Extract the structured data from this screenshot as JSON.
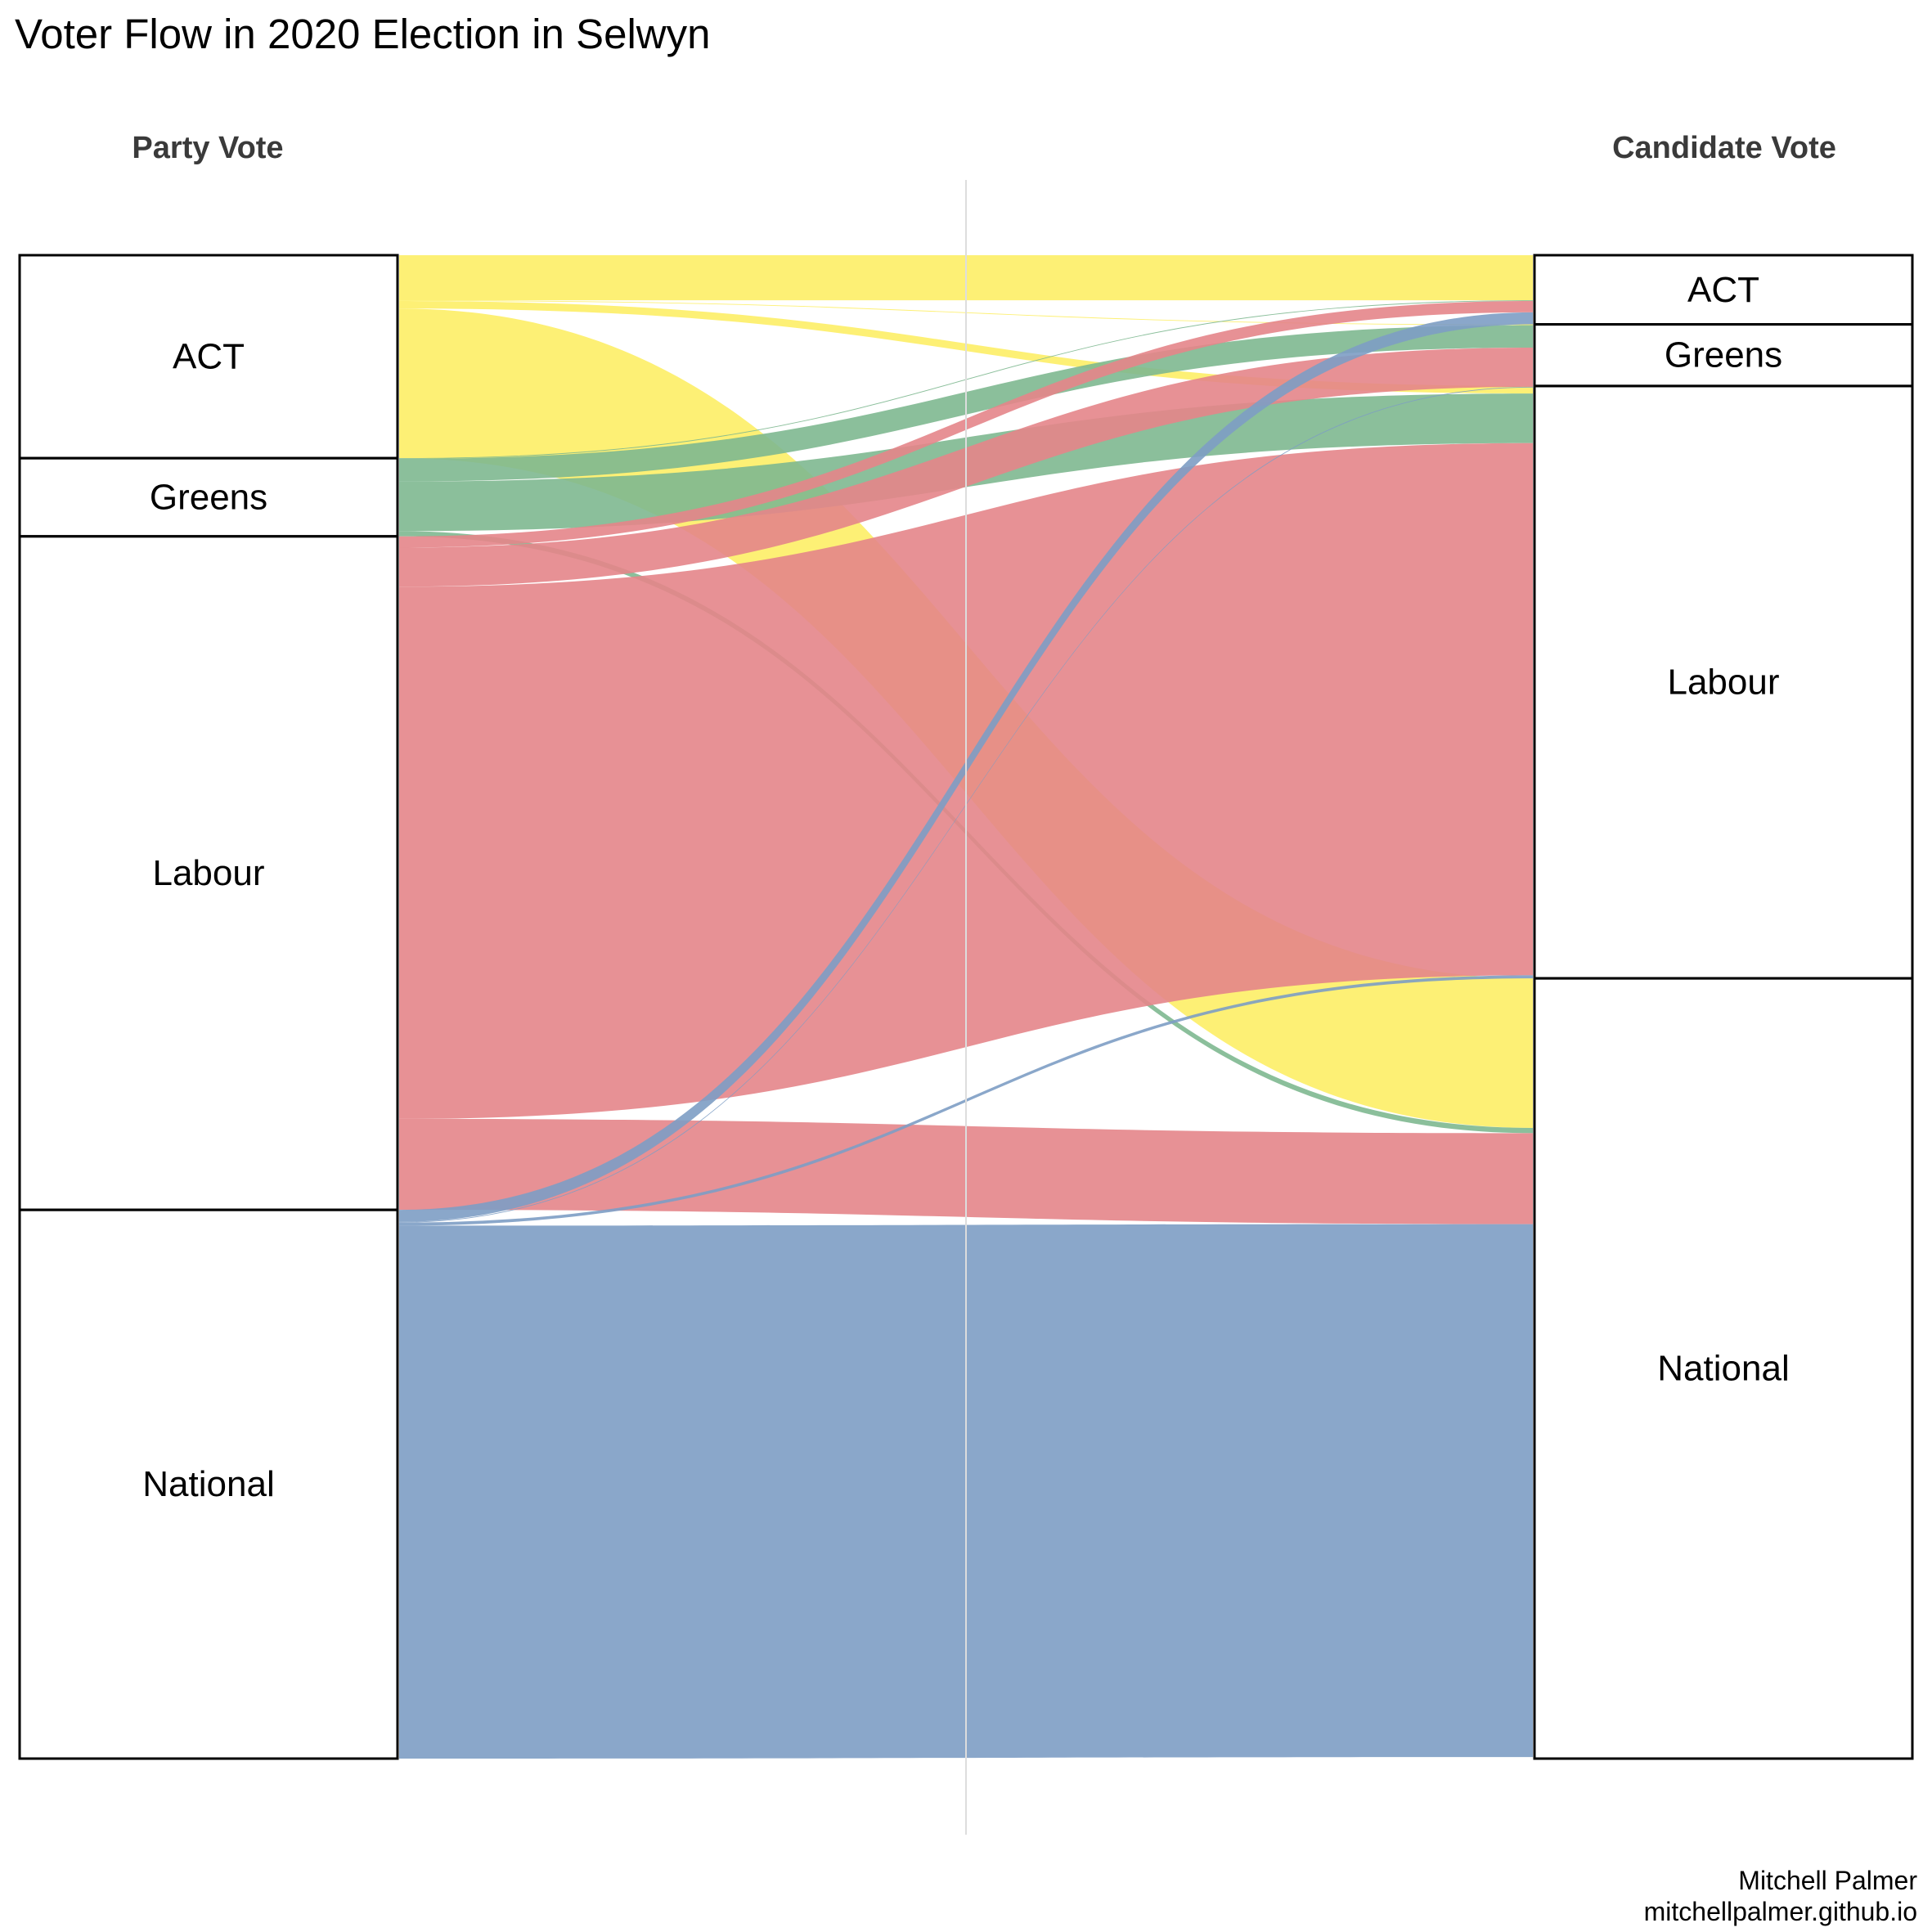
{
  "title": "Voter Flow in 2020 Election in Selwyn",
  "credit": {
    "author": "Mitchell Palmer",
    "site": "mitchellpalmer.github.io"
  },
  "colors": {
    "ACT": "#fdee66",
    "Greens": "#7eb890",
    "Labour": "#e48589",
    "National": "#7d9dc4"
  },
  "chart_data": {
    "type": "sankey",
    "axis_left": "Party Vote",
    "axis_right": "Candidate Vote",
    "nodes_left": [
      {
        "name": "ACT",
        "value": 13.5
      },
      {
        "name": "Greens",
        "value": 5.2
      },
      {
        "name": "Labour",
        "value": 44.8
      },
      {
        "name": "National",
        "value": 36.5
      }
    ],
    "nodes_right": [
      {
        "name": "ACT",
        "value": 4.6
      },
      {
        "name": "Greens",
        "value": 4.1
      },
      {
        "name": "Labour",
        "value": 39.4
      },
      {
        "name": "National",
        "value": 51.9
      }
    ],
    "flows": [
      {
        "from": "ACT",
        "to": "ACT",
        "value": 3.0
      },
      {
        "from": "ACT",
        "to": "Greens",
        "value": 0.05
      },
      {
        "from": "ACT",
        "to": "Labour",
        "value": 0.5
      },
      {
        "from": "ACT",
        "to": "National",
        "value": 9.95
      },
      {
        "from": "Greens",
        "to": "ACT",
        "value": 0.05
      },
      {
        "from": "Greens",
        "to": "Greens",
        "value": 1.5
      },
      {
        "from": "Greens",
        "to": "Labour",
        "value": 3.3
      },
      {
        "from": "Greens",
        "to": "National",
        "value": 0.35
      },
      {
        "from": "Labour",
        "to": "ACT",
        "value": 0.75
      },
      {
        "from": "Labour",
        "to": "Greens",
        "value": 2.6
      },
      {
        "from": "Labour",
        "to": "Labour",
        "value": 35.4
      },
      {
        "from": "Labour",
        "to": "National",
        "value": 6.05
      },
      {
        "from": "National",
        "to": "ACT",
        "value": 0.8
      },
      {
        "from": "National",
        "to": "Greens",
        "value": 0.05
      },
      {
        "from": "National",
        "to": "Labour",
        "value": 0.2
      },
      {
        "from": "National",
        "to": "National",
        "value": 35.45
      }
    ]
  }
}
